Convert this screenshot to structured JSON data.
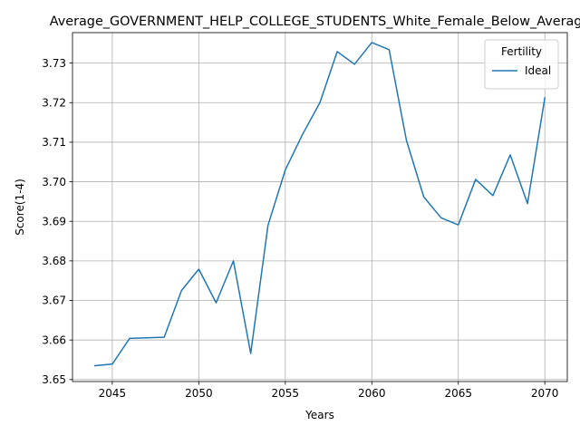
{
  "chart_data": {
    "type": "line",
    "title": "Average_GOVERNMENT_HELP_COLLEGE_STUDENTS_White_Female_Below_Average",
    "xlabel": "Years",
    "ylabel": "Score(1-4)",
    "xlim": [
      2042.7,
      2071.3
    ],
    "ylim": [
      3.6495,
      3.7377
    ],
    "x_ticks": [
      2045,
      2050,
      2055,
      2060,
      2065,
      2070
    ],
    "y_ticks": [
      3.65,
      3.66,
      3.67,
      3.68,
      3.69,
      3.7,
      3.71,
      3.72,
      3.73
    ],
    "y_tick_labels": [
      "3.65",
      "3.66",
      "3.67",
      "3.68",
      "3.69",
      "3.70",
      "3.71",
      "3.72",
      "3.73"
    ],
    "grid": true,
    "legend": {
      "title": "Fertility",
      "placement": "upper-right"
    },
    "series": [
      {
        "name": "Ideal",
        "color": "#1f77b4",
        "x": [
          2044,
          2045,
          2046,
          2048,
          2049,
          2050,
          2051,
          2052,
          2053,
          2054,
          2055,
          2056,
          2057,
          2058,
          2059,
          2060,
          2061,
          2062,
          2063,
          2064,
          2065,
          2066,
          2067,
          2068,
          2069,
          2070
        ],
        "y": [
          3.6535,
          3.6539,
          3.6604,
          3.6607,
          3.6725,
          3.6779,
          3.6694,
          3.68,
          3.6566,
          3.689,
          3.703,
          3.712,
          3.72,
          3.7329,
          3.7297,
          3.7352,
          3.7334,
          3.7105,
          3.6962,
          3.6909,
          3.6891,
          3.7006,
          3.6965,
          3.7068,
          3.6945,
          3.7212
        ]
      }
    ]
  }
}
